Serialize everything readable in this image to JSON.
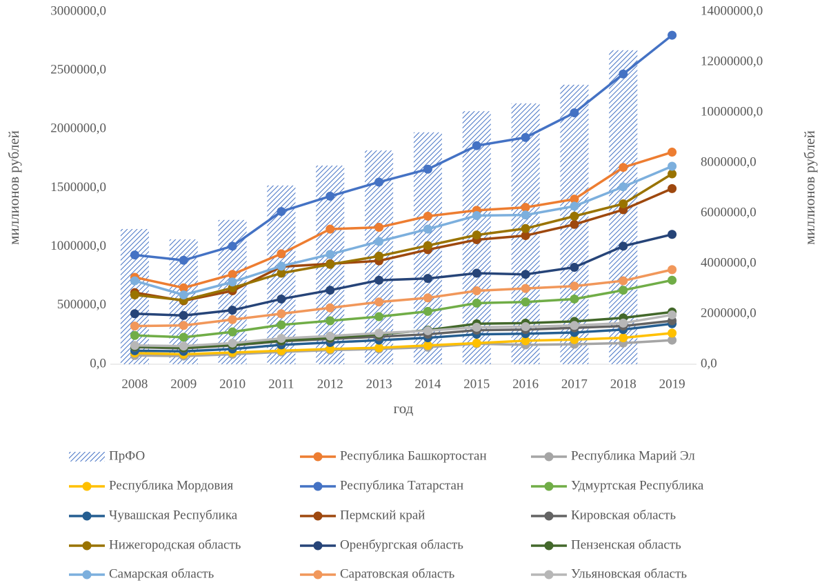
{
  "chart_data": {
    "type": "combo",
    "x_label": "год",
    "y_label": "миллионов рублей",
    "y2_label": "миллионов рублей",
    "categories": [
      "2008",
      "2009",
      "2010",
      "2011",
      "2012",
      "2013",
      "2014",
      "2015",
      "2016",
      "2017",
      "2018",
      "2019"
    ],
    "ylim": [
      0,
      3000000
    ],
    "yticks": [
      {
        "value": 0,
        "label": "0,0"
      },
      {
        "value": 500000,
        "label": "500000,0"
      },
      {
        "value": 1000000,
        "label": "1000000,0"
      },
      {
        "value": 1500000,
        "label": "1500000,0"
      },
      {
        "value": 2000000,
        "label": "2000000,0"
      },
      {
        "value": 2500000,
        "label": "2500000,0"
      },
      {
        "value": 3000000,
        "label": "3000000,0"
      }
    ],
    "y2lim": [
      0,
      14000000
    ],
    "y2ticks": [
      {
        "value": 0,
        "label": "0,0"
      },
      {
        "value": 2000000,
        "label": "2000000,0"
      },
      {
        "value": 4000000,
        "label": "4000000,0"
      },
      {
        "value": 6000000,
        "label": "6000000,0"
      },
      {
        "value": 8000000,
        "label": "8000000,0"
      },
      {
        "value": 10000000,
        "label": "10000000,0"
      },
      {
        "value": 12000000,
        "label": "12000000,0"
      },
      {
        "value": 14000000,
        "label": "14000000,0"
      }
    ],
    "legend": "bottom",
    "series": [
      {
        "name": "ПрФО",
        "type": "bar",
        "axis": "y2",
        "color": "#4472c4",
        "values": [
          5370000,
          4960000,
          5730000,
          7100000,
          7890000,
          8490000,
          9210000,
          10050000,
          10360000,
          11100000,
          12470000,
          null
        ]
      },
      {
        "name": "Республика Башкортостан",
        "type": "line",
        "color": "#ed7d31",
        "values": [
          740000,
          650000,
          765000,
          940000,
          1150000,
          1165000,
          1260000,
          1310000,
          1335000,
          1405000,
          1675000,
          1805000
        ]
      },
      {
        "name": "Республика Марий Эл",
        "type": "line",
        "color": "#a5a5a5",
        "values": [
          75000,
          70000,
          85000,
          105000,
          120000,
          130000,
          145000,
          175000,
          165000,
          170000,
          180000,
          205000
        ]
      },
      {
        "name": "Республика Мордовия",
        "type": "line",
        "color": "#ffc000",
        "values": [
          95000,
          85000,
          100000,
          115000,
          130000,
          140000,
          160000,
          180000,
          200000,
          210000,
          225000,
          265000
        ]
      },
      {
        "name": "Республика Татарстан",
        "type": "line",
        "color": "#4472c4",
        "values": [
          930000,
          885000,
          1005000,
          1300000,
          1430000,
          1550000,
          1660000,
          1860000,
          1930000,
          2140000,
          2470000,
          2800000
        ]
      },
      {
        "name": "Удмуртская Республика",
        "type": "line",
        "color": "#70ad47",
        "values": [
          245000,
          230000,
          275000,
          335000,
          370000,
          405000,
          450000,
          520000,
          530000,
          555000,
          630000,
          715000
        ]
      },
      {
        "name": "Чувашская Республика",
        "type": "line",
        "color": "#255e91",
        "values": [
          115000,
          110000,
          130000,
          165000,
          185000,
          205000,
          225000,
          255000,
          260000,
          270000,
          295000,
          345000
        ]
      },
      {
        "name": "Пермский край",
        "type": "line",
        "color": "#9e480e",
        "values": [
          610000,
          540000,
          625000,
          830000,
          855000,
          880000,
          975000,
          1060000,
          1095000,
          1190000,
          1315000,
          1495000
        ]
      },
      {
        "name": "Кировская область",
        "type": "line",
        "color": "#636363",
        "values": [
          145000,
          135000,
          160000,
          195000,
          215000,
          235000,
          255000,
          290000,
          295000,
          310000,
          325000,
          370000
        ]
      },
      {
        "name": "Нижегородская область",
        "type": "line",
        "color": "#997300",
        "values": [
          590000,
          545000,
          650000,
          775000,
          850000,
          920000,
          1010000,
          1100000,
          1155000,
          1260000,
          1365000,
          1620000
        ]
      },
      {
        "name": "Оренбургская область",
        "type": "line",
        "color": "#264478",
        "values": [
          430000,
          415000,
          460000,
          555000,
          630000,
          715000,
          730000,
          775000,
          765000,
          825000,
          1005000,
          1105000
        ]
      },
      {
        "name": "Пензенская область",
        "type": "line",
        "color": "#43682b",
        "values": [
          150000,
          140000,
          165000,
          200000,
          225000,
          255000,
          290000,
          345000,
          350000,
          365000,
          395000,
          445000
        ]
      },
      {
        "name": "Самарская область",
        "type": "line",
        "color": "#7cafdd",
        "values": [
          710000,
          590000,
          700000,
          835000,
          935000,
          1045000,
          1150000,
          1265000,
          1270000,
          1345000,
          1510000,
          1685000
        ]
      },
      {
        "name": "Саратовская область",
        "type": "line",
        "color": "#f1975a",
        "values": [
          325000,
          330000,
          380000,
          430000,
          480000,
          530000,
          565000,
          625000,
          645000,
          665000,
          710000,
          805000
        ]
      },
      {
        "name": "Ульяновская область",
        "type": "line",
        "color": "#b7b7b7",
        "values": [
          160000,
          155000,
          180000,
          220000,
          240000,
          265000,
          285000,
          315000,
          320000,
          330000,
          350000,
          420000
        ]
      }
    ]
  }
}
